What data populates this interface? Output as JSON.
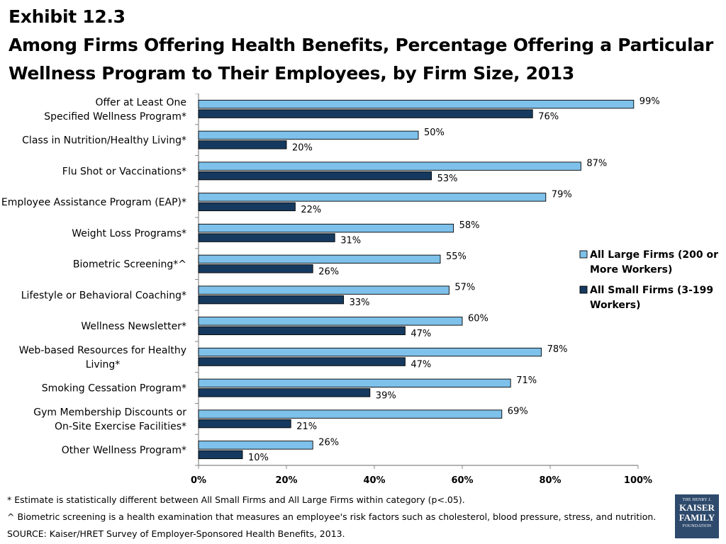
{
  "title": {
    "line1": "Exhibit 12.3",
    "line2": "Among Firms Offering Health Benefits, Percentage Offering a Particular",
    "line3": "Wellness Program to Their Employees, by Firm Size, 2013"
  },
  "chart_data": {
    "type": "bar",
    "orientation": "horizontal",
    "categories": [
      [
        "Offer at Least One",
        "Specified Wellness Program*"
      ],
      [
        "Class in Nutrition/Healthy Living*"
      ],
      [
        "Flu Shot or Vaccinations*"
      ],
      [
        "Employee Assistance Program (EAP)*"
      ],
      [
        "Weight Loss Programs*"
      ],
      [
        "Biometric Screening*^"
      ],
      [
        "Lifestyle or Behavioral Coaching*"
      ],
      [
        "Wellness Newsletter*"
      ],
      [
        "Web-based Resources for Healthy",
        "Living*"
      ],
      [
        "Smoking Cessation Program*"
      ],
      [
        "Gym Membership Discounts or",
        "On-Site Exercise Facilities*"
      ],
      [
        "Other Wellness Program*"
      ]
    ],
    "series": [
      {
        "name": "All Large Firms (200 or More Workers)",
        "legend_lines": [
          "All Large Firms (200 or",
          "More Workers)"
        ],
        "color": "#7ec1ea",
        "values": [
          99,
          50,
          87,
          79,
          58,
          55,
          57,
          60,
          78,
          71,
          69,
          26
        ],
        "labels": [
          "99%",
          "50%",
          "87%",
          "79%",
          "58%",
          "55%",
          "57%",
          "60%",
          "78%",
          "71%",
          "69%",
          "26%"
        ]
      },
      {
        "name": "All Small Firms (3-199 Workers)",
        "legend_lines": [
          "All Small Firms (3-199",
          "Workers)"
        ],
        "color": "#163a5f",
        "values": [
          76,
          20,
          53,
          22,
          31,
          26,
          33,
          47,
          47,
          39,
          21,
          10
        ],
        "labels": [
          "76%",
          "20%",
          "53%",
          "22%",
          "31%",
          "26%",
          "33%",
          "47%",
          "47%",
          "39%",
          "21%",
          "10%"
        ]
      }
    ],
    "xlim": [
      0,
      100
    ],
    "xticks": [
      "0%",
      "20%",
      "40%",
      "60%",
      "80%",
      "100%"
    ],
    "tick_values": [
      0,
      20,
      40,
      60,
      80,
      100
    ],
    "grid": false,
    "legend_position": "right"
  },
  "footnotes": [
    "* Estimate is statistically different between All Small Firms and All Large Firms within category (p<.05).",
    "^ Biometric screening is a health examination that measures an employee's risk factors such as cholesterol, blood pressure, stress, and nutrition.",
    "SOURCE: Kaiser/HRET Survey of Employer-Sponsored Health Benefits, 2013."
  ],
  "logo": {
    "line1": "THE HENRY J.",
    "line2": "KAISER",
    "line3": "FAMILY",
    "line4": "FOUNDATION"
  }
}
